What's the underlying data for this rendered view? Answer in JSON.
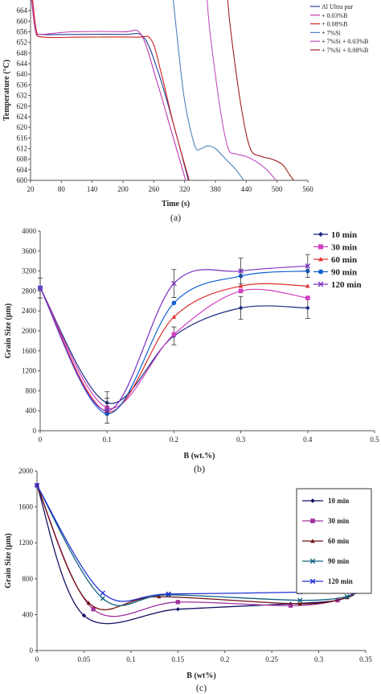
{
  "chart_data": [
    {
      "type": "line",
      "panel_label": "(a)",
      "xlabel": "Time (s)",
      "ylabel": "Temperature (°C)",
      "xlim": [
        20,
        560
      ],
      "ylim": [
        600,
        668
      ],
      "xticks": [
        "20",
        "80",
        "140",
        "200",
        "260",
        "320",
        "380",
        "440",
        "500",
        "560"
      ],
      "xtick_values": [
        20,
        80,
        140,
        200,
        260,
        320,
        380,
        440,
        500,
        560
      ],
      "yticks": [
        "600",
        "604",
        "608",
        "612",
        "616",
        "620",
        "624",
        "628",
        "632",
        "636",
        "640",
        "644",
        "648",
        "652",
        "656",
        "660",
        "664"
      ],
      "ytick_values": [
        600,
        604,
        608,
        612,
        616,
        620,
        624,
        628,
        632,
        636,
        640,
        644,
        648,
        652,
        656,
        660,
        664
      ],
      "legend_position": "top-right",
      "series": [
        {
          "name": "Al Ultra pur",
          "color": "#1f3f9a",
          "dash": "",
          "x": [
            22,
            30,
            40,
            100,
            200,
            240,
            270,
            300,
            330
          ],
          "y": [
            668,
            656,
            655,
            655,
            655,
            654,
            640,
            620,
            598
          ]
        },
        {
          "name": "+ 0.03%B",
          "color": "#c03ab0",
          "dash": "",
          "x": [
            22,
            30,
            40,
            100,
            200,
            235,
            265,
            295,
            325
          ],
          "y": [
            668,
            656,
            655,
            656,
            656,
            655,
            638,
            618,
            598
          ]
        },
        {
          "name": "+ 0.08%B",
          "color": "#d02020",
          "dash": "",
          "x": [
            24,
            32,
            45,
            120,
            225,
            255,
            275,
            300,
            332
          ],
          "y": [
            668,
            656,
            654,
            654,
            654,
            653,
            640,
            620,
            598
          ]
        },
        {
          "name": "+ 7%Si",
          "color": "#5080c0",
          "dash": "",
          "x": [
            298,
            305,
            320,
            340,
            352,
            365,
            380,
            400,
            420,
            435
          ],
          "y": [
            668,
            655,
            630,
            613,
            612,
            613,
            612,
            608,
            604,
            600
          ]
        },
        {
          "name": "+ 7%Si + 0.03%B",
          "color": "#c050c0",
          "dash": "",
          "x": [
            364,
            370,
            390,
            405,
            420,
            440,
            460,
            480,
            498
          ],
          "y": [
            668,
            655,
            626,
            612,
            610,
            609,
            607,
            604,
            600
          ]
        },
        {
          "name": "+ 7%Si + 0.08%B",
          "color": "#a02020",
          "dash": "",
          "x": [
            404,
            410,
            430,
            448,
            470,
            490,
            510,
            525,
            540
          ],
          "y": [
            668,
            656,
            628,
            612,
            609,
            608,
            606,
            602,
            598
          ]
        }
      ]
    },
    {
      "type": "line",
      "panel_label": "(b)",
      "xlabel": "B (wt.%)",
      "ylabel": "Grain Size (µm)",
      "xlim": [
        0,
        0.5
      ],
      "ylim": [
        0,
        4000
      ],
      "xticks": [
        "0",
        "0.1",
        "0.2",
        "0.3",
        "0.4",
        "0.5"
      ],
      "xtick_values": [
        0,
        0.1,
        0.2,
        0.3,
        0.4,
        0.5
      ],
      "yticks": [
        "0",
        "400",
        "800",
        "1200",
        "1600",
        "2000",
        "2400",
        "2800",
        "3200",
        "3600",
        "4000"
      ],
      "ytick_values": [
        0,
        400,
        800,
        1200,
        1600,
        2000,
        2400,
        2800,
        3200,
        3600,
        4000
      ],
      "legend_position": "top-right",
      "x": [
        0,
        0.1,
        0.2,
        0.3,
        0.4
      ],
      "series": [
        {
          "name": "10 min",
          "color": "#1a2a80",
          "marker": "diamond",
          "values": [
            2860,
            560,
            1900,
            2460,
            2460
          ],
          "errors": [
            200,
            220,
            180,
            230,
            210
          ]
        },
        {
          "name": "30 min",
          "color": "#d040c0",
          "marker": "square",
          "values": [
            2860,
            460,
            1930,
            2800,
            2660
          ],
          "errors": [
            0,
            0,
            0,
            0,
            0
          ]
        },
        {
          "name": "60 min",
          "color": "#e03030",
          "marker": "triangle",
          "values": [
            2860,
            380,
            2280,
            2900,
            2900
          ],
          "errors": [
            0,
            0,
            0,
            0,
            0
          ]
        },
        {
          "name": "90 min",
          "color": "#1060d0",
          "marker": "circle",
          "values": [
            2860,
            340,
            2560,
            3100,
            3200
          ],
          "errors": [
            0,
            0,
            0,
            0,
            0
          ]
        },
        {
          "name": "120 min",
          "color": "#7a30c0",
          "marker": "x",
          "values": [
            2860,
            400,
            2950,
            3200,
            3300
          ],
          "errors": [
            0,
            250,
            280,
            260,
            230
          ]
        }
      ]
    },
    {
      "type": "line",
      "panel_label": "(c)",
      "xlabel": "B (wt%)",
      "ylabel": "Grain Size (µm)",
      "xlim": [
        0,
        0.35
      ],
      "ylim": [
        0,
        2000
      ],
      "xticks": [
        "0",
        "0.05",
        "0.1",
        "0.15",
        "0.2",
        "0.25",
        "0.3",
        "0.35"
      ],
      "xtick_values": [
        0,
        0.05,
        0.1,
        0.15,
        0.2,
        0.25,
        0.3,
        0.35
      ],
      "yticks": [
        "0",
        "400",
        "800",
        "1200",
        "1600",
        "2000"
      ],
      "ytick_values": [
        0,
        400,
        800,
        1200,
        1600,
        2000
      ],
      "legend_position": "top-right",
      "series": [
        {
          "name": "10 min",
          "color": "#101060",
          "marker": "diamond",
          "x": [
            0,
            0.05,
            0.15,
            0.27,
            0.32,
            0.34
          ],
          "values": [
            1840,
            390,
            460,
            520,
            560,
            650
          ]
        },
        {
          "name": "30 min",
          "color": "#a030a0",
          "marker": "square",
          "x": [
            0,
            0.06,
            0.15,
            0.27,
            0.32,
            0.34
          ],
          "values": [
            1840,
            460,
            540,
            500,
            560,
            660
          ]
        },
        {
          "name": "60 min",
          "color": "#701010",
          "marker": "triangle",
          "x": [
            0,
            0.055,
            0.13,
            0.28,
            0.33,
            0.34
          ],
          "values": [
            1840,
            530,
            600,
            520,
            590,
            660
          ]
        },
        {
          "name": "90 min",
          "color": "#106080",
          "marker": "x",
          "x": [
            0,
            0.07,
            0.14,
            0.28,
            0.33,
            0.34
          ],
          "values": [
            1840,
            580,
            620,
            560,
            600,
            660
          ]
        },
        {
          "name": "120 min",
          "color": "#2030d0",
          "marker": "x",
          "x": [
            0,
            0.07,
            0.14,
            0.28,
            0.33,
            0.34
          ],
          "values": [
            1840,
            640,
            630,
            650,
            660,
            670
          ]
        }
      ]
    }
  ]
}
